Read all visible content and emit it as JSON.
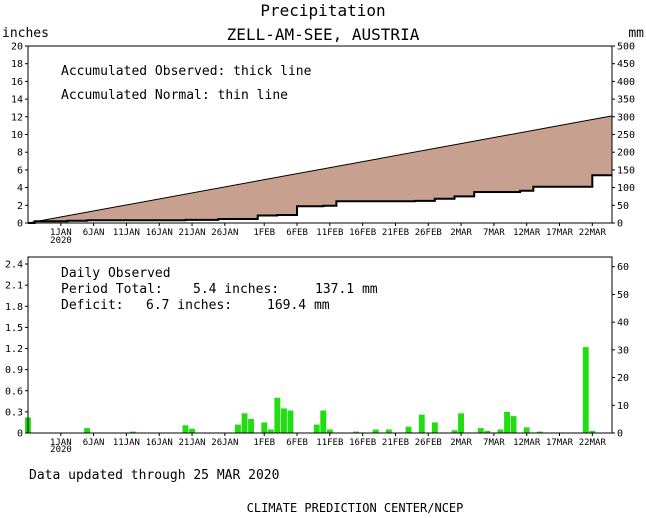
{
  "title": "Precipitation",
  "subtitle": "ZELL-AM-SEE, AUSTRIA",
  "footer": {
    "updated": "Data updated through 25 MAR 2020",
    "source": "CLIMATE PREDICTION CENTER/NCEP"
  },
  "colors": {
    "deficit_fill": "#c8a090",
    "bars": "#22dd11",
    "lines": "#000000"
  },
  "chart_data": [
    {
      "type": "area",
      "ylabel": "inches",
      "ylabel_right": "mm",
      "ylim": [
        0,
        20
      ],
      "ylim_right": [
        0,
        500
      ],
      "yticks": [
        "0",
        "2",
        "4",
        "6",
        "8",
        "10",
        "12",
        "14",
        "16",
        "18",
        "20"
      ],
      "yticks_right": [
        "0",
        "50",
        "100",
        "150",
        "200",
        "250",
        "300",
        "350",
        "400",
        "450",
        "500"
      ],
      "x_range": [
        "2019-12-27",
        "2020-03-25"
      ],
      "xticks": [
        "1JAN",
        "6JAN",
        "11JAN",
        "16JAN",
        "21JAN",
        "26JAN",
        "1FEB",
        "6FEB",
        "11FEB",
        "16FEB",
        "21FEB",
        "26FEB",
        "2MAR",
        "7MAR",
        "12MAR",
        "17MAR",
        "22MAR"
      ],
      "xtick_year": "2020",
      "annotations": [
        "Accumulated Observed: thick line",
        "Accumulated Normal: thin line"
      ],
      "series": [
        {
          "name": "Accumulated Normal",
          "x": [
            "2019-12-27",
            "2020-03-25"
          ],
          "y": [
            0,
            12.1
          ]
        },
        {
          "name": "Accumulated Observed",
          "x": [
            "2019-12-27",
            "2019-12-28",
            "2020-01-02",
            "2020-01-05",
            "2020-01-20",
            "2020-01-25",
            "2020-01-28",
            "2020-01-31",
            "2020-02-03",
            "2020-02-06",
            "2020-02-10",
            "2020-02-12",
            "2020-02-24",
            "2020-02-27",
            "2020-03-01",
            "2020-03-04",
            "2020-03-11",
            "2020-03-13",
            "2020-03-21",
            "2020-03-22",
            "2020-03-25"
          ],
          "y": [
            0.0,
            0.2,
            0.25,
            0.3,
            0.35,
            0.45,
            0.45,
            0.85,
            0.9,
            1.9,
            1.95,
            2.45,
            2.5,
            2.75,
            3.0,
            3.5,
            3.65,
            4.1,
            4.1,
            5.4,
            5.4
          ]
        }
      ]
    },
    {
      "type": "bar",
      "ylabel": "",
      "ylim": [
        0,
        2.5
      ],
      "ylim_right": [
        0,
        63.5
      ],
      "yticks": [
        "0",
        "0.3",
        "0.6",
        "0.9",
        "1.2",
        "1.5",
        "1.8",
        "2.1",
        "2.4"
      ],
      "yticks_right": [
        "0",
        "10",
        "20",
        "30",
        "40",
        "50",
        "60"
      ],
      "x_range": [
        "2019-12-27",
        "2020-03-25"
      ],
      "xticks": [
        "1JAN",
        "6JAN",
        "11JAN",
        "16JAN",
        "21JAN",
        "26JAN",
        "1FEB",
        "6FEB",
        "11FEB",
        "16FEB",
        "21FEB",
        "26FEB",
        "2MAR",
        "7MAR",
        "12MAR",
        "17MAR",
        "22MAR"
      ],
      "xtick_year": "2020",
      "stats": {
        "heading": "Daily Observed",
        "total_label": "Period Total:",
        "total_in": "5.4 inches:",
        "total_mm": "137.1 mm",
        "deficit_label": "Deficit:",
        "deficit_in": "6.7 inches:",
        "deficit_mm": "169.4 mm"
      },
      "dates": [
        "2019-12-27",
        "2020-01-05",
        "2020-01-12",
        "2020-01-20",
        "2020-01-21",
        "2020-01-28",
        "2020-01-29",
        "2020-01-30",
        "2020-02-01",
        "2020-02-02",
        "2020-02-03",
        "2020-02-04",
        "2020-02-05",
        "2020-02-09",
        "2020-02-10",
        "2020-02-11",
        "2020-02-15",
        "2020-02-18",
        "2020-02-20",
        "2020-02-23",
        "2020-02-25",
        "2020-02-27",
        "2020-03-01",
        "2020-03-02",
        "2020-03-05",
        "2020-03-06",
        "2020-03-08",
        "2020-03-09",
        "2020-03-10",
        "2020-03-12",
        "2020-03-14",
        "2020-03-21",
        "2020-03-22"
      ],
      "values": [
        0.22,
        0.07,
        0.02,
        0.11,
        0.06,
        0.12,
        0.28,
        0.2,
        0.15,
        0.05,
        0.5,
        0.35,
        0.32,
        0.12,
        0.32,
        0.05,
        0.02,
        0.05,
        0.05,
        0.09,
        0.26,
        0.15,
        0.04,
        0.28,
        0.07,
        0.03,
        0.05,
        0.3,
        0.24,
        0.08,
        0.02,
        1.22,
        0.03
      ]
    }
  ]
}
